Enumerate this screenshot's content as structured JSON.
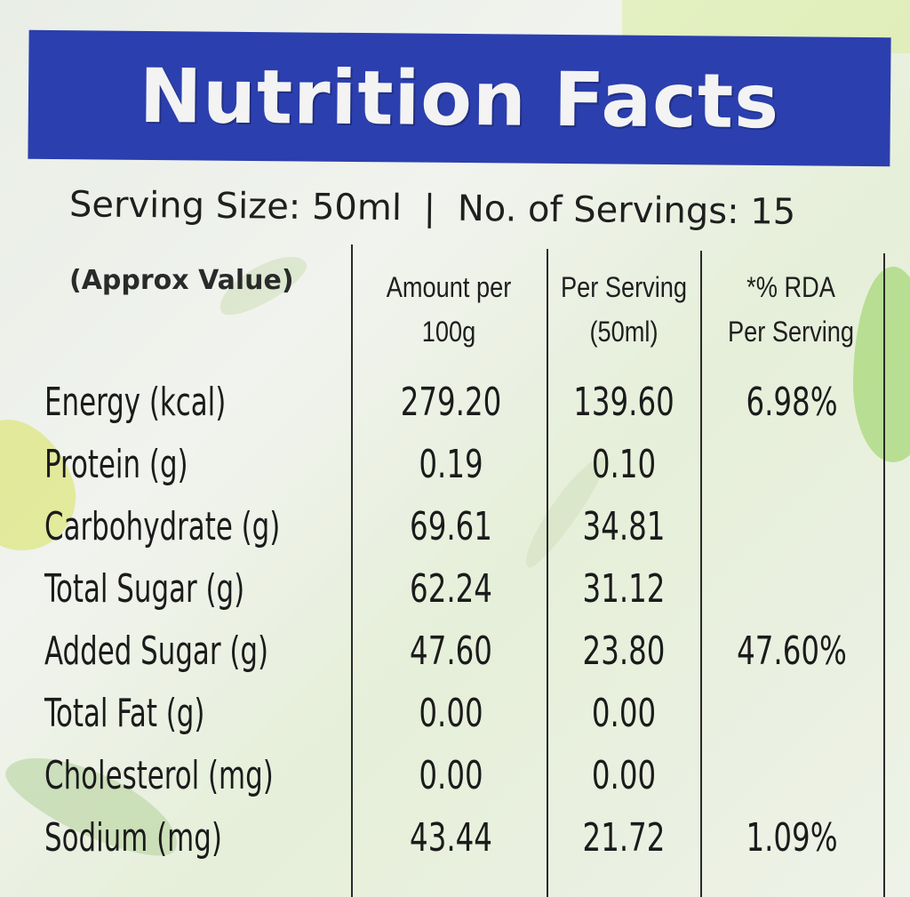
{
  "title": "Nutrition Facts",
  "serving": {
    "size": "Serving Size: 50ml",
    "separator": "|",
    "count": "No. of Servings: 15"
  },
  "columns": {
    "approx": "(Approx Value)",
    "amount_line1": "Amount per",
    "amount_line2": "100g",
    "per_serving_line1": "Per Serving",
    "per_serving_line2": "(50ml)",
    "rda_line1": "*% RDA",
    "rda_line2": "Per Serving"
  },
  "rows": [
    {
      "name": "Energy (kcal)",
      "per100": "279.20",
      "serving": "139.60",
      "rda": "6.98%"
    },
    {
      "name": "Protein (g)",
      "per100": "0.19",
      "serving": "0.10",
      "rda": ""
    },
    {
      "name": "Carbohydrate (g)",
      "per100": "69.61",
      "serving": "34.81",
      "rda": ""
    },
    {
      "name": "Total Sugar (g)",
      "per100": "62.24",
      "serving": "31.12",
      "rda": ""
    },
    {
      "name": "Added Sugar (g)",
      "per100": "47.60",
      "serving": "23.80",
      "rda": "47.60%"
    },
    {
      "name": "Total Fat (g)",
      "per100": "0.00",
      "serving": "0.00",
      "rda": ""
    },
    {
      "name": "Cholesterol (mg)",
      "per100": "0.00",
      "serving": "0.00",
      "rda": ""
    },
    {
      "name": "Sodium (mg)",
      "per100": "43.44",
      "serving": "21.72",
      "rda": "1.09%"
    }
  ],
  "colors": {
    "header_bg": "#2b3fae",
    "header_text": "#f3f3f3"
  }
}
